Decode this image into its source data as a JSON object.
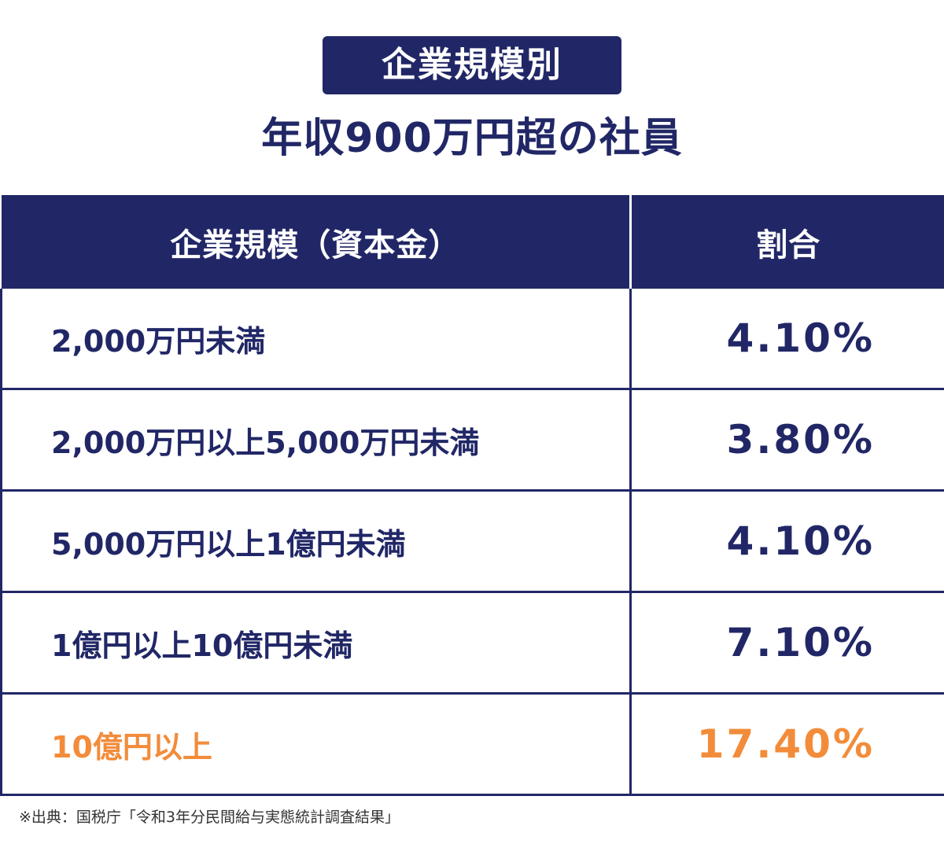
{
  "title_badge": "企業規模別",
  "subtitle": "年収900万円超の社員",
  "colors": {
    "navy": "#212766",
    "highlight": "#f28c3a"
  },
  "chart_data": {
    "type": "table",
    "columns": [
      "企業規模（資本金）",
      "割合"
    ],
    "rows": [
      {
        "category": "2,000万円未満",
        "value": "4.10%"
      },
      {
        "category": "2,000万円以上5,000万円未満",
        "value": "3.80%"
      },
      {
        "category": "5,000万円以上1億円未満",
        "value": "4.10%"
      },
      {
        "category": "1億円以上10億円未満",
        "value": "7.10%"
      },
      {
        "category": "10億円以上",
        "value": "17.40%",
        "highlighted": true
      }
    ],
    "values": [
      4.1,
      3.8,
      4.1,
      7.1,
      17.4
    ]
  },
  "source": "※出典：国税庁「令和3年分民間給与実態統計調査結果」"
}
